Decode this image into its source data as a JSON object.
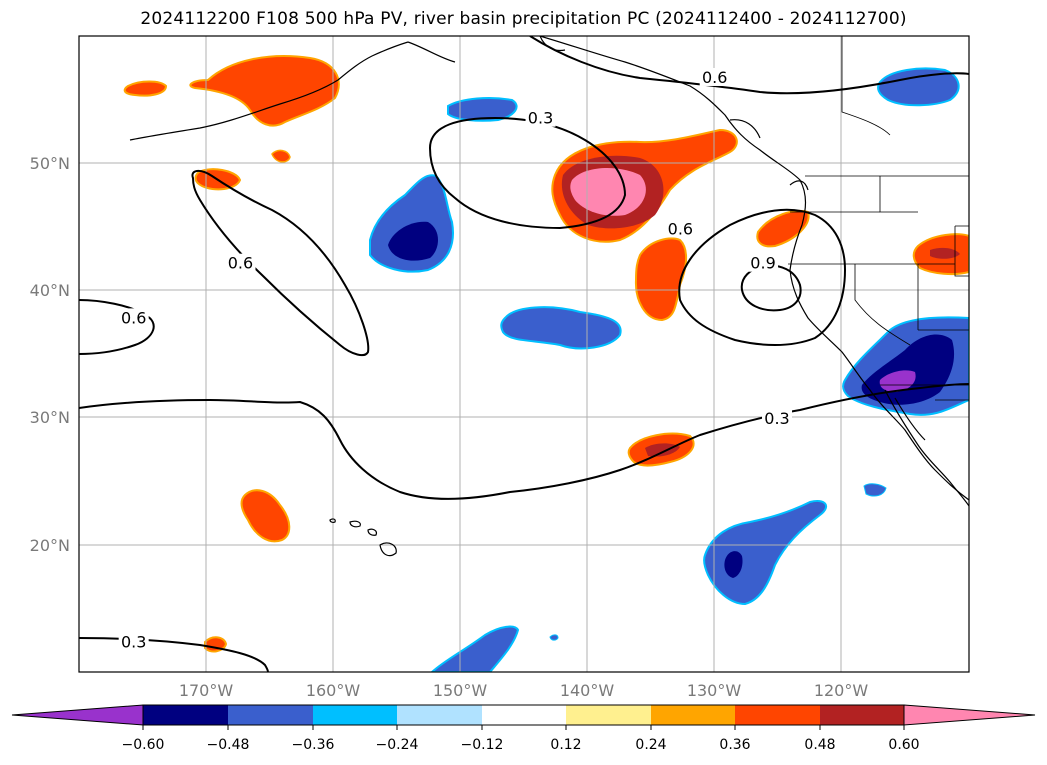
{
  "title": "2024112200 F108 500 hPa PV, river basin precipitation PC (2024112400 - 2024112700)",
  "map": {
    "projection": "PlateCarree",
    "lon_range": [
      -180,
      -110
    ],
    "lat_range": [
      10,
      60
    ],
    "grid": true,
    "lon_ticks": [
      {
        "value": -170,
        "label": "170°W"
      },
      {
        "value": -160,
        "label": "160°W"
      },
      {
        "value": -150,
        "label": "150°W"
      },
      {
        "value": -140,
        "label": "140°W"
      },
      {
        "value": -130,
        "label": "130°W"
      },
      {
        "value": -120,
        "label": "120°W"
      }
    ],
    "lat_ticks": [
      {
        "value": 50,
        "label": "50°N"
      },
      {
        "value": 40,
        "label": "40°N"
      },
      {
        "value": 30,
        "label": "30°N"
      },
      {
        "value": 20,
        "label": "20°N"
      }
    ]
  },
  "contours": {
    "field": "500 hPa PV",
    "labels": [
      {
        "text": "0.6",
        "lon": -130,
        "lat": 56.7
      },
      {
        "text": "0.3",
        "lon": -143.7,
        "lat": 53.5
      },
      {
        "text": "0.6",
        "lon": -132.7,
        "lat": 44.8
      },
      {
        "text": "0.9",
        "lon": -126.2,
        "lat": 42.1
      },
      {
        "text": "0.6",
        "lon": -167.3,
        "lat": 42.1
      },
      {
        "text": "0.6",
        "lon": -175.7,
        "lat": 37.8
      },
      {
        "text": "0.3",
        "lon": -125.1,
        "lat": 29.9
      },
      {
        "text": "0.3",
        "lon": -175.7,
        "lat": 12.3
      }
    ]
  },
  "precip_pc_shading": {
    "field": "river basin precipitation PC",
    "regions": [
      {
        "sign": "positive",
        "max_class": 0.6,
        "location": "northeast Pacific near 49N 139W"
      },
      {
        "sign": "positive",
        "max_class": 0.36,
        "location": "Gulf of Alaska near 57N 165W"
      },
      {
        "sign": "positive",
        "max_class": 0.36,
        "location": "near 42N 133W"
      },
      {
        "sign": "positive",
        "max_class": 0.48,
        "location": "near 28N 133W"
      },
      {
        "sign": "positive",
        "max_class": 0.36,
        "location": "near 22N 164W"
      },
      {
        "sign": "positive",
        "max_class": 0.48,
        "location": "interior west near 42N 111W"
      },
      {
        "sign": "negative",
        "max_class": -0.6,
        "location": "southwest US near 33N 115W"
      },
      {
        "sign": "negative",
        "max_class": -0.48,
        "location": "near 44N 156W"
      },
      {
        "sign": "negative",
        "max_class": -0.36,
        "location": "near 37N 142W"
      },
      {
        "sign": "negative",
        "max_class": -0.48,
        "location": "near 18N 128W"
      },
      {
        "sign": "negative",
        "max_class": -0.36,
        "location": "near 55N 114W"
      },
      {
        "sign": "negative",
        "max_class": -0.36,
        "location": "near 53N 146W"
      },
      {
        "sign": "negative",
        "max_class": -0.36,
        "location": "near 12N 148W"
      }
    ]
  },
  "colorbar": {
    "ticks": [
      "−0.60",
      "−0.48",
      "−0.36",
      "−0.24",
      "−0.12",
      "0.12",
      "0.24",
      "0.36",
      "0.48",
      "0.60"
    ],
    "colors": {
      "under": "#9932cc",
      "c_m060": "#000080",
      "c_m048": "#3a5fcd",
      "c_m036": "#00bfff",
      "c_m024": "#b0e2ff",
      "c_m012": "#ffffff",
      "c_p012": "#fff08f",
      "c_p024": "#ffa500",
      "c_p036": "#ff4500",
      "c_p048": "#b22222",
      "over": "#ff86b0"
    }
  }
}
